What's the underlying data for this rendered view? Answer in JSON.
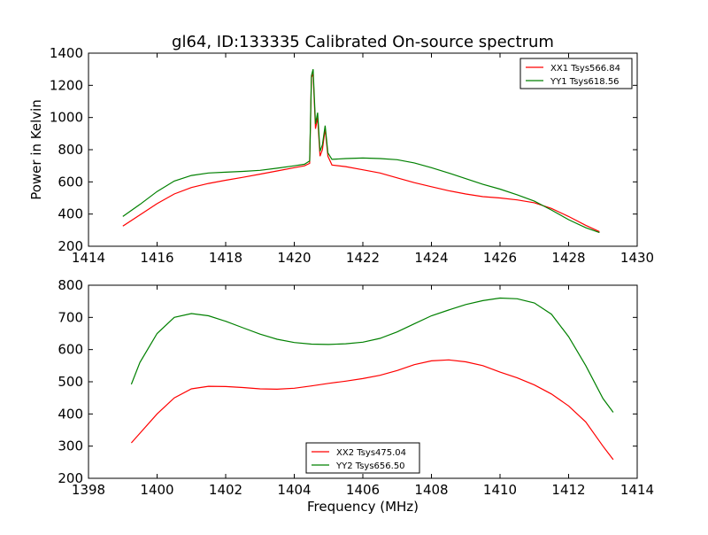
{
  "figure": {
    "title": "gl64, ID:133335 Calibrated On-source spectrum"
  },
  "chart_data": [
    {
      "type": "line",
      "title": "gl64, ID:133335 Calibrated On-source spectrum",
      "xlabel": "",
      "ylabel": "Power in Kelvin",
      "xlim": [
        1414,
        1430
      ],
      "ylim": [
        200,
        1400
      ],
      "xticks": [
        1414,
        1416,
        1418,
        1420,
        1422,
        1424,
        1426,
        1428,
        1430
      ],
      "yticks": [
        200,
        400,
        600,
        800,
        1000,
        1200,
        1400
      ],
      "grid": false,
      "legend_position": "top-right",
      "series": [
        {
          "name": "XX1 Tsys566.84",
          "color": "#ff0000",
          "points": [
            [
              1415.0,
              325
            ],
            [
              1415.5,
              395
            ],
            [
              1416.0,
              465
            ],
            [
              1416.5,
              525
            ],
            [
              1417.0,
              565
            ],
            [
              1417.5,
              590
            ],
            [
              1418.0,
              610
            ],
            [
              1418.5,
              628
            ],
            [
              1419.0,
              648
            ],
            [
              1419.5,
              668
            ],
            [
              1420.0,
              688
            ],
            [
              1420.3,
              700
            ],
            [
              1420.45,
              715
            ],
            [
              1420.5,
              1250
            ],
            [
              1420.55,
              1270
            ],
            [
              1420.62,
              930
            ],
            [
              1420.68,
              1000
            ],
            [
              1420.75,
              760
            ],
            [
              1420.82,
              800
            ],
            [
              1420.9,
              930
            ],
            [
              1420.98,
              760
            ],
            [
              1421.1,
              705
            ],
            [
              1421.5,
              695
            ],
            [
              1422.0,
              675
            ],
            [
              1422.5,
              655
            ],
            [
              1423.0,
              625
            ],
            [
              1423.5,
              595
            ],
            [
              1424.0,
              570
            ],
            [
              1424.5,
              545
            ],
            [
              1425.0,
              525
            ],
            [
              1425.5,
              508
            ],
            [
              1426.0,
              500
            ],
            [
              1426.5,
              488
            ],
            [
              1427.0,
              470
            ],
            [
              1427.5,
              435
            ],
            [
              1428.0,
              385
            ],
            [
              1428.5,
              330
            ],
            [
              1428.9,
              290
            ]
          ]
        },
        {
          "name": "YY1 Tsys618.56",
          "color": "#008000",
          "points": [
            [
              1415.0,
              385
            ],
            [
              1415.5,
              460
            ],
            [
              1416.0,
              540
            ],
            [
              1416.5,
              605
            ],
            [
              1417.0,
              640
            ],
            [
              1417.5,
              655
            ],
            [
              1418.0,
              660
            ],
            [
              1418.5,
              665
            ],
            [
              1419.0,
              672
            ],
            [
              1419.5,
              685
            ],
            [
              1420.0,
              700
            ],
            [
              1420.3,
              710
            ],
            [
              1420.45,
              730
            ],
            [
              1420.5,
              1260
            ],
            [
              1420.55,
              1300
            ],
            [
              1420.62,
              960
            ],
            [
              1420.68,
              1030
            ],
            [
              1420.75,
              790
            ],
            [
              1420.82,
              830
            ],
            [
              1420.9,
              950
            ],
            [
              1420.98,
              780
            ],
            [
              1421.1,
              740
            ],
            [
              1421.5,
              745
            ],
            [
              1422.0,
              748
            ],
            [
              1422.5,
              745
            ],
            [
              1423.0,
              738
            ],
            [
              1423.5,
              718
            ],
            [
              1424.0,
              688
            ],
            [
              1424.5,
              655
            ],
            [
              1425.0,
              620
            ],
            [
              1425.5,
              585
            ],
            [
              1426.0,
              555
            ],
            [
              1426.5,
              520
            ],
            [
              1427.0,
              480
            ],
            [
              1427.5,
              425
            ],
            [
              1428.0,
              365
            ],
            [
              1428.5,
              315
            ],
            [
              1428.9,
              285
            ]
          ]
        }
      ]
    },
    {
      "type": "line",
      "title": "",
      "xlabel": "Frequency (MHz)",
      "ylabel": "",
      "xlim": [
        1398,
        1414
      ],
      "ylim": [
        200,
        800
      ],
      "xticks": [
        1398,
        1400,
        1402,
        1404,
        1406,
        1408,
        1410,
        1412,
        1414
      ],
      "yticks": [
        200,
        300,
        400,
        500,
        600,
        700,
        800
      ],
      "grid": false,
      "legend_position": "bottom-center",
      "series": [
        {
          "name": "XX2 Tsys475.04",
          "color": "#ff0000",
          "points": [
            [
              1399.25,
              310
            ],
            [
              1399.5,
              340
            ],
            [
              1400.0,
              400
            ],
            [
              1400.5,
              450
            ],
            [
              1401.0,
              478
            ],
            [
              1401.5,
              486
            ],
            [
              1402.0,
              485
            ],
            [
              1402.5,
              482
            ],
            [
              1403.0,
              478
            ],
            [
              1403.5,
              477
            ],
            [
              1404.0,
              480
            ],
            [
              1404.5,
              487
            ],
            [
              1405.0,
              495
            ],
            [
              1405.5,
              502
            ],
            [
              1406.0,
              510
            ],
            [
              1406.5,
              520
            ],
            [
              1407.0,
              535
            ],
            [
              1407.5,
              553
            ],
            [
              1408.0,
              565
            ],
            [
              1408.5,
              568
            ],
            [
              1409.0,
              562
            ],
            [
              1409.5,
              550
            ],
            [
              1410.0,
              530
            ],
            [
              1410.5,
              512
            ],
            [
              1411.0,
              490
            ],
            [
              1411.5,
              462
            ],
            [
              1412.0,
              425
            ],
            [
              1412.5,
              375
            ],
            [
              1413.0,
              300
            ],
            [
              1413.3,
              258
            ]
          ]
        },
        {
          "name": "YY2 Tsys656.50",
          "color": "#008000",
          "points": [
            [
              1399.25,
              492
            ],
            [
              1399.5,
              560
            ],
            [
              1400.0,
              650
            ],
            [
              1400.5,
              700
            ],
            [
              1401.0,
              712
            ],
            [
              1401.5,
              705
            ],
            [
              1402.0,
              688
            ],
            [
              1402.5,
              668
            ],
            [
              1403.0,
              648
            ],
            [
              1403.5,
              632
            ],
            [
              1404.0,
              622
            ],
            [
              1404.5,
              617
            ],
            [
              1405.0,
              616
            ],
            [
              1405.5,
              618
            ],
            [
              1406.0,
              623
            ],
            [
              1406.5,
              635
            ],
            [
              1407.0,
              655
            ],
            [
              1407.5,
              680
            ],
            [
              1408.0,
              705
            ],
            [
              1408.5,
              723
            ],
            [
              1409.0,
              740
            ],
            [
              1409.5,
              752
            ],
            [
              1410.0,
              760
            ],
            [
              1410.5,
              758
            ],
            [
              1411.0,
              745
            ],
            [
              1411.5,
              710
            ],
            [
              1412.0,
              640
            ],
            [
              1412.5,
              550
            ],
            [
              1413.0,
              448
            ],
            [
              1413.3,
              405
            ]
          ]
        }
      ]
    }
  ]
}
